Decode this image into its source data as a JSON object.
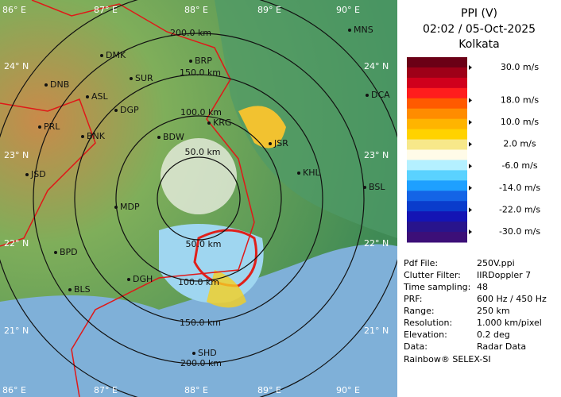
{
  "map": {
    "lon_labels": [
      "86° E",
      "87° E",
      "88° E",
      "89° E",
      "90° E"
    ],
    "lat_labels": [
      "24° N",
      "23° N",
      "22° N",
      "21° N"
    ],
    "range_labels": [
      "50.0 km",
      "100.0 km",
      "150.0 km",
      "200.0 km"
    ],
    "cities": [
      "MNS",
      "DMK",
      "BRP",
      "DNB",
      "SUR",
      "ASL",
      "DGP",
      "DCA",
      "PRL",
      "BNK",
      "KRG",
      "BDW",
      "JSR",
      "JSD",
      "KHL",
      "BSL",
      "MDP",
      "BPD",
      "DGH",
      "BLS",
      "SHD"
    ]
  },
  "legend": {
    "title": "PPI (V)",
    "time": "02:02 / 05-Oct-2025",
    "station": "Kolkata",
    "colors": [
      "#6b0016",
      "#9e0018",
      "#d0001c",
      "#ff1d1d",
      "#ff5a00",
      "#ff8c00",
      "#ffb400",
      "#ffd200",
      "#f7e88a",
      "#fffbe8",
      "#b4f0ff",
      "#5ad2ff",
      "#1ea0ff",
      "#1464e6",
      "#0a3ccc",
      "#1414b4",
      "#28148c",
      "#3c0f78"
    ],
    "scale": [
      {
        "value": 30,
        "label": "30.0 m/s"
      },
      {
        "value": 18,
        "label": "18.0 m/s"
      },
      {
        "value": 10,
        "label": "10.0 m/s"
      },
      {
        "value": 2,
        "label": "2.0 m/s"
      },
      {
        "value": -6,
        "label": "-6.0 m/s"
      },
      {
        "value": -14,
        "label": "-14.0 m/s"
      },
      {
        "value": -22,
        "label": "-22.0 m/s"
      },
      {
        "value": -30,
        "label": "-30.0 m/s"
      }
    ]
  },
  "info": {
    "rows": [
      [
        "Pdf File:",
        "250V.ppi"
      ],
      [
        "Clutter Filter:",
        "IIRDoppler 7"
      ],
      [
        "Time sampling:",
        "48"
      ],
      [
        "PRF:",
        "600 Hz / 450 Hz"
      ],
      [
        "Range:",
        "250 km"
      ],
      [
        "Resolution:",
        "1.000 km/pixel"
      ],
      [
        "Elevation:",
        "0.2 deg"
      ],
      [
        "Data:",
        "Radar Data"
      ]
    ],
    "footer": "Rainbow® SELEX-SI"
  }
}
